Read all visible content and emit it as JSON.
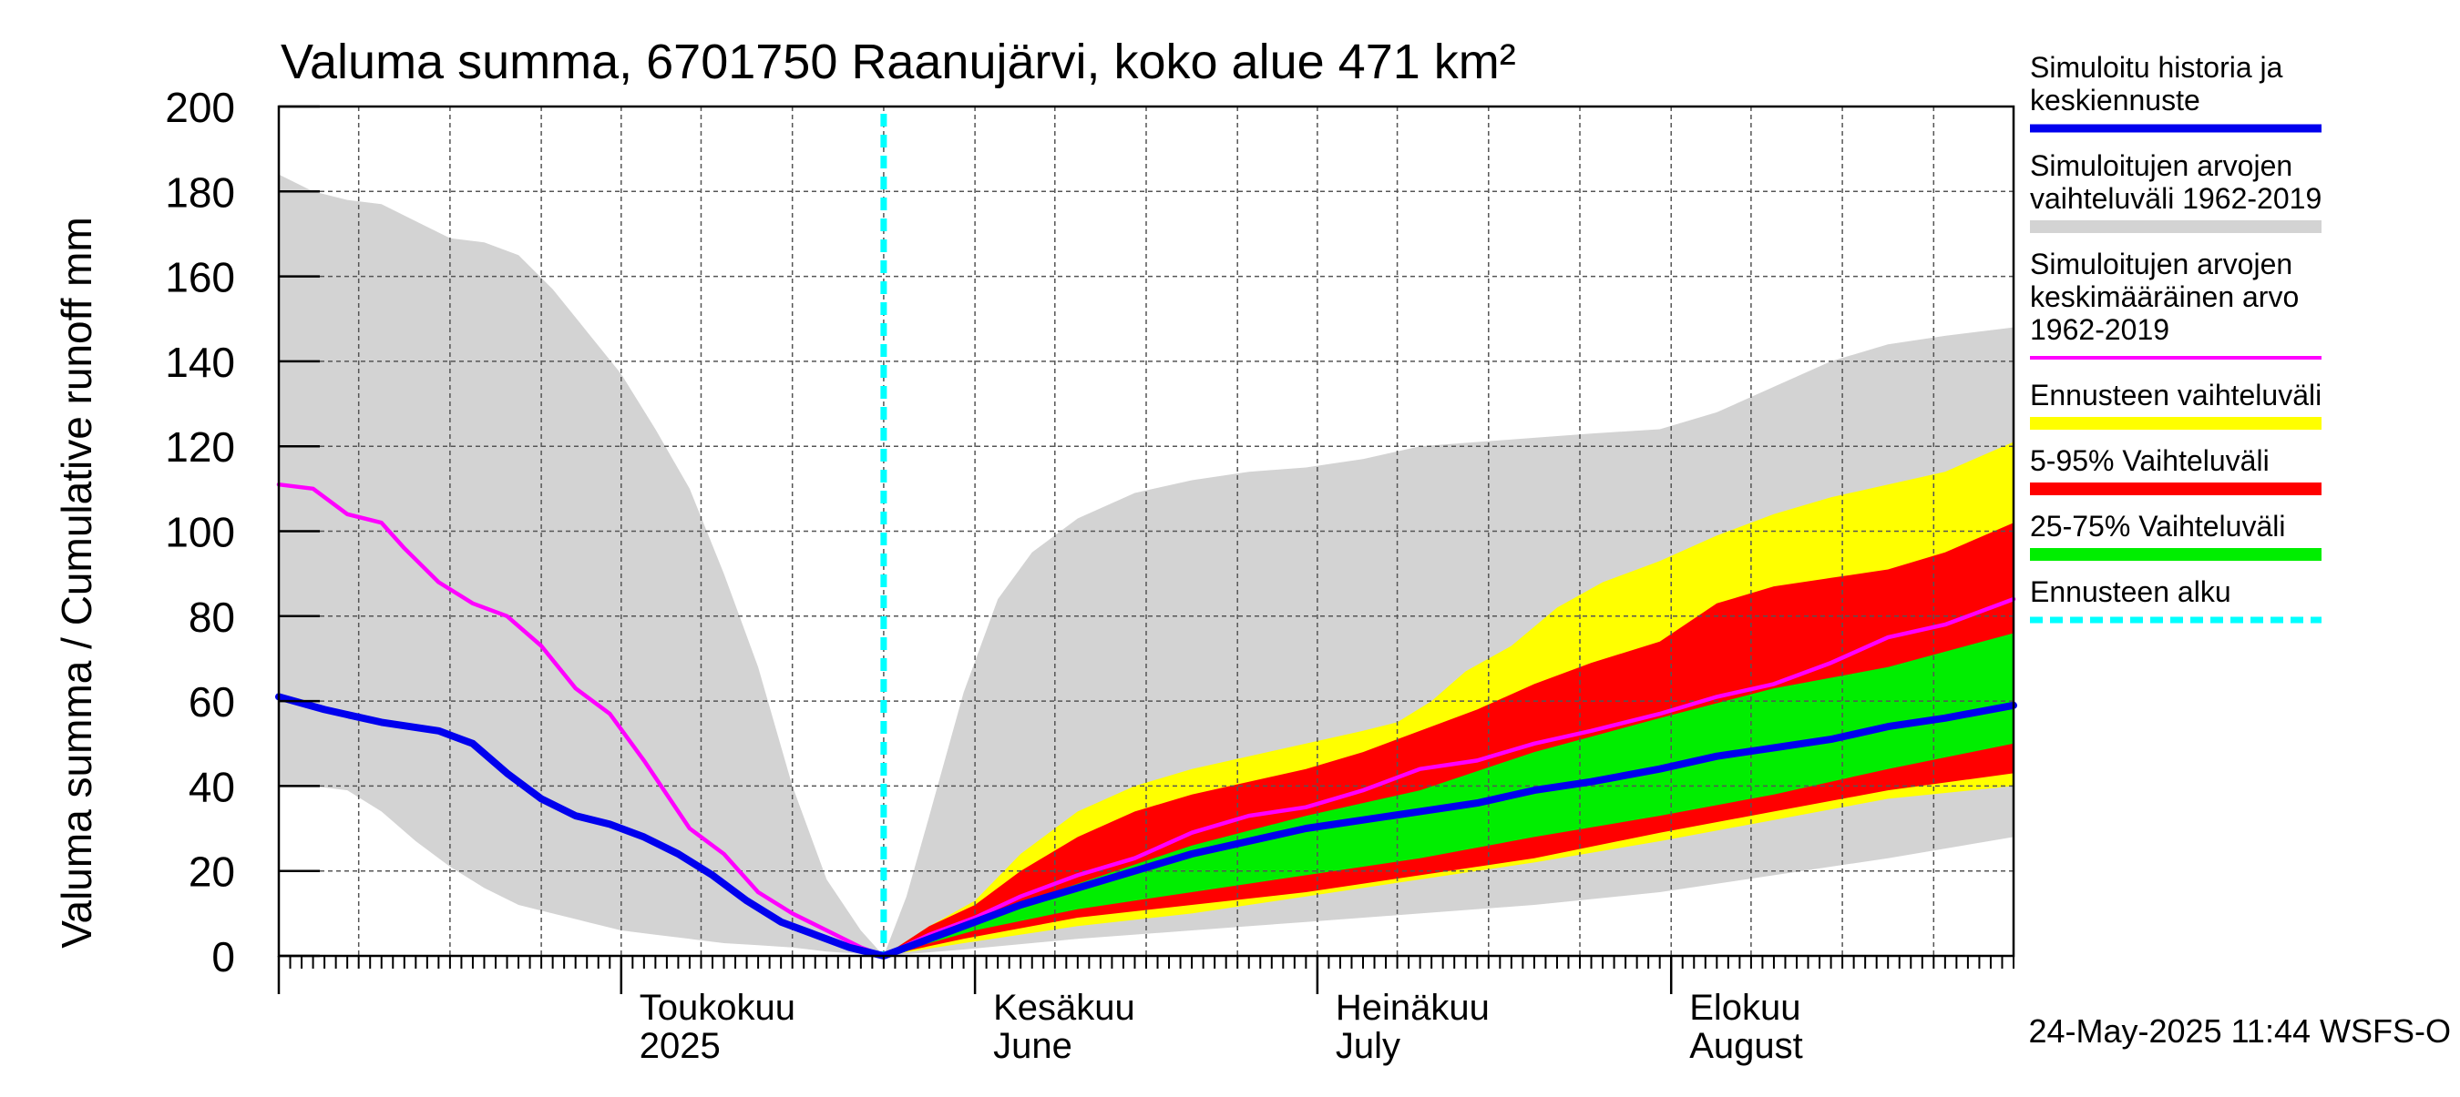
{
  "chart_data": {
    "type": "area",
    "title": "Valuma summa, 6701750 Raanujärvi, koko alue 471 km²",
    "ylabel": "Valuma summa / Cumulative runoff    mm",
    "ylim": [
      0,
      200
    ],
    "yticks": [
      0,
      20,
      40,
      60,
      80,
      100,
      120,
      140,
      160,
      180,
      200
    ],
    "xlim": [
      "2025-04-01",
      "2025-08-31"
    ],
    "grid": true,
    "legend_position": "right",
    "forecast_start": "2025-05-24",
    "timestamp": "24-May-2025 11:44 WSFS-O",
    "month_labels": [
      {
        "date": "2025-05-01",
        "line1": "Toukokuu",
        "line2": "2025"
      },
      {
        "date": "2025-06-01",
        "line1": "Kesäkuu",
        "line2": "June"
      },
      {
        "date": "2025-07-01",
        "line1": "Heinäkuu",
        "line2": "July"
      },
      {
        "date": "2025-08-01",
        "line1": "Elokuu",
        "line2": "August"
      }
    ],
    "legend": [
      {
        "lines": [
          "Simuloitu historia ja",
          "keskiennuste"
        ],
        "color": "#0000ee",
        "style": "solid"
      },
      {
        "lines": [
          "Simuloitujen arvojen",
          "vaihteluväli 1962-2019"
        ],
        "color": "#d3d3d3",
        "style": "solid"
      },
      {
        "lines": [
          "Simuloitujen arvojen",
          "keskimääräinen arvo",
          "   1962-2019"
        ],
        "color": "#ff00ff",
        "style": "solid"
      },
      {
        "lines": [
          "Ennusteen vaihteluväli"
        ],
        "color": "#ffff00",
        "style": "solid"
      },
      {
        "lines": [
          "5-95% Vaihteluväli"
        ],
        "color": "#ff0000",
        "style": "solid"
      },
      {
        "lines": [
          "25-75% Vaihteluväli"
        ],
        "color": "#00ee00",
        "style": "solid"
      },
      {
        "lines": [
          "Ennusteen alku"
        ],
        "color": "#00ffff",
        "style": "dashed"
      }
    ],
    "bands": [
      {
        "name": "Simuloitujen arvojen vaihteluväli 1962-2019",
        "color": "#d3d3d3",
        "upper": [
          [
            "2025-04-01",
            184
          ],
          [
            "2025-04-04",
            180
          ],
          [
            "2025-04-07",
            178
          ],
          [
            "2025-04-10",
            177
          ],
          [
            "2025-04-13",
            173
          ],
          [
            "2025-04-16",
            169
          ],
          [
            "2025-04-19",
            168
          ],
          [
            "2025-04-22",
            165
          ],
          [
            "2025-04-25",
            157
          ],
          [
            "2025-04-28",
            147
          ],
          [
            "2025-05-01",
            137
          ],
          [
            "2025-05-04",
            124
          ],
          [
            "2025-05-07",
            110
          ],
          [
            "2025-05-10",
            90
          ],
          [
            "2025-05-13",
            68
          ],
          [
            "2025-05-16",
            40
          ],
          [
            "2025-05-19",
            18
          ],
          [
            "2025-05-22",
            6
          ],
          [
            "2025-05-24",
            0
          ],
          [
            "2025-05-26",
            14
          ],
          [
            "2025-05-28",
            33
          ],
          [
            "2025-05-31",
            62
          ],
          [
            "2025-06-03",
            84
          ],
          [
            "2025-06-06",
            95
          ],
          [
            "2025-06-10",
            103
          ],
          [
            "2025-06-15",
            109
          ],
          [
            "2025-06-20",
            112
          ],
          [
            "2025-06-25",
            114
          ],
          [
            "2025-06-30",
            115
          ],
          [
            "2025-07-05",
            117
          ],
          [
            "2025-07-10",
            120
          ],
          [
            "2025-07-15",
            121
          ],
          [
            "2025-07-20",
            122
          ],
          [
            "2025-07-25",
            123
          ],
          [
            "2025-07-31",
            124
          ],
          [
            "2025-08-05",
            128
          ],
          [
            "2025-08-10",
            134
          ],
          [
            "2025-08-15",
            140
          ],
          [
            "2025-08-20",
            144
          ],
          [
            "2025-08-25",
            146
          ],
          [
            "2025-08-31",
            148
          ]
        ],
        "lower": [
          [
            "2025-04-01",
            40
          ],
          [
            "2025-04-04",
            40
          ],
          [
            "2025-04-07",
            39
          ],
          [
            "2025-04-10",
            34
          ],
          [
            "2025-04-13",
            27
          ],
          [
            "2025-04-16",
            21
          ],
          [
            "2025-04-19",
            16
          ],
          [
            "2025-04-22",
            12
          ],
          [
            "2025-04-25",
            10
          ],
          [
            "2025-04-28",
            8
          ],
          [
            "2025-05-01",
            6
          ],
          [
            "2025-05-04",
            5
          ],
          [
            "2025-05-07",
            4
          ],
          [
            "2025-05-10",
            3
          ],
          [
            "2025-05-13",
            2.5
          ],
          [
            "2025-05-16",
            2
          ],
          [
            "2025-05-19",
            1
          ],
          [
            "2025-05-22",
            0.5
          ],
          [
            "2025-05-24",
            0
          ],
          [
            "2025-05-31",
            1.5
          ],
          [
            "2025-06-10",
            4
          ],
          [
            "2025-06-20",
            6
          ],
          [
            "2025-06-30",
            8
          ],
          [
            "2025-07-10",
            10
          ],
          [
            "2025-07-20",
            12
          ],
          [
            "2025-07-31",
            15
          ],
          [
            "2025-08-10",
            19
          ],
          [
            "2025-08-20",
            23
          ],
          [
            "2025-08-31",
            28
          ]
        ]
      },
      {
        "name": "Ennusteen vaihteluväli",
        "color": "#ffff00",
        "upper": [
          [
            "2025-05-24",
            0
          ],
          [
            "2025-05-28",
            7
          ],
          [
            "2025-06-01",
            13
          ],
          [
            "2025-06-05",
            24
          ],
          [
            "2025-06-10",
            34
          ],
          [
            "2025-06-15",
            40
          ],
          [
            "2025-06-20",
            44
          ],
          [
            "2025-06-25",
            47
          ],
          [
            "2025-06-30",
            50
          ],
          [
            "2025-07-05",
            53
          ],
          [
            "2025-07-08",
            55
          ],
          [
            "2025-07-11",
            60
          ],
          [
            "2025-07-14",
            67
          ],
          [
            "2025-07-18",
            73
          ],
          [
            "2025-07-22",
            82
          ],
          [
            "2025-07-26",
            88
          ],
          [
            "2025-07-31",
            93
          ],
          [
            "2025-08-05",
            99
          ],
          [
            "2025-08-10",
            104
          ],
          [
            "2025-08-15",
            108
          ],
          [
            "2025-08-20",
            111
          ],
          [
            "2025-08-25",
            114
          ],
          [
            "2025-08-31",
            121
          ]
        ],
        "lower": [
          [
            "2025-05-24",
            0
          ],
          [
            "2025-05-31",
            3
          ],
          [
            "2025-06-10",
            7
          ],
          [
            "2025-06-20",
            10
          ],
          [
            "2025-06-30",
            14
          ],
          [
            "2025-07-10",
            18
          ],
          [
            "2025-07-20",
            22
          ],
          [
            "2025-07-31",
            27
          ],
          [
            "2025-08-10",
            32
          ],
          [
            "2025-08-20",
            37
          ],
          [
            "2025-08-31",
            40
          ]
        ]
      },
      {
        "name": "5-95% Vaihteluväli",
        "color": "#ff0000",
        "upper": [
          [
            "2025-05-24",
            0
          ],
          [
            "2025-05-28",
            7
          ],
          [
            "2025-06-01",
            12
          ],
          [
            "2025-06-05",
            20
          ],
          [
            "2025-06-10",
            28
          ],
          [
            "2025-06-15",
            34
          ],
          [
            "2025-06-20",
            38
          ],
          [
            "2025-06-25",
            41
          ],
          [
            "2025-06-30",
            44
          ],
          [
            "2025-07-05",
            48
          ],
          [
            "2025-07-10",
            53
          ],
          [
            "2025-07-15",
            58
          ],
          [
            "2025-07-20",
            64
          ],
          [
            "2025-07-25",
            69
          ],
          [
            "2025-07-31",
            74
          ],
          [
            "2025-08-05",
            83
          ],
          [
            "2025-08-10",
            87
          ],
          [
            "2025-08-15",
            89
          ],
          [
            "2025-08-20",
            91
          ],
          [
            "2025-08-25",
            95
          ],
          [
            "2025-08-31",
            102
          ]
        ],
        "lower": [
          [
            "2025-05-24",
            0
          ],
          [
            "2025-05-31",
            4
          ],
          [
            "2025-06-10",
            9
          ],
          [
            "2025-06-20",
            12
          ],
          [
            "2025-06-30",
            15
          ],
          [
            "2025-07-10",
            19
          ],
          [
            "2025-07-20",
            23
          ],
          [
            "2025-07-31",
            29
          ],
          [
            "2025-08-10",
            34
          ],
          [
            "2025-08-20",
            39
          ],
          [
            "2025-08-31",
            43
          ]
        ]
      },
      {
        "name": "25-75% Vaihteluväli",
        "color": "#00ee00",
        "upper": [
          [
            "2025-05-24",
            0
          ],
          [
            "2025-06-01",
            9
          ],
          [
            "2025-06-10",
            17
          ],
          [
            "2025-06-20",
            26
          ],
          [
            "2025-06-30",
            33
          ],
          [
            "2025-07-10",
            39
          ],
          [
            "2025-07-20",
            48
          ],
          [
            "2025-07-31",
            56
          ],
          [
            "2025-08-10",
            63
          ],
          [
            "2025-08-20",
            68
          ],
          [
            "2025-08-31",
            76
          ]
        ],
        "lower": [
          [
            "2025-05-24",
            0
          ],
          [
            "2025-06-01",
            6
          ],
          [
            "2025-06-10",
            11
          ],
          [
            "2025-06-20",
            15
          ],
          [
            "2025-06-30",
            19
          ],
          [
            "2025-07-10",
            23
          ],
          [
            "2025-07-20",
            28
          ],
          [
            "2025-07-31",
            33
          ],
          [
            "2025-08-10",
            38
          ],
          [
            "2025-08-20",
            44
          ],
          [
            "2025-08-31",
            50
          ]
        ]
      }
    ],
    "series": [
      {
        "name": "Simuloitujen arvojen keskimääräinen arvo 1962-2019",
        "color": "#ff00ff",
        "points": [
          [
            "2025-04-01",
            111
          ],
          [
            "2025-04-04",
            110
          ],
          [
            "2025-04-07",
            104
          ],
          [
            "2025-04-10",
            102
          ],
          [
            "2025-04-12",
            96
          ],
          [
            "2025-04-15",
            88
          ],
          [
            "2025-04-18",
            83
          ],
          [
            "2025-04-21",
            80
          ],
          [
            "2025-04-24",
            73
          ],
          [
            "2025-04-27",
            63
          ],
          [
            "2025-04-30",
            57
          ],
          [
            "2025-05-03",
            46
          ],
          [
            "2025-05-07",
            30
          ],
          [
            "2025-05-10",
            24
          ],
          [
            "2025-05-13",
            15
          ],
          [
            "2025-05-16",
            10
          ],
          [
            "2025-05-19",
            6
          ],
          [
            "2025-05-22",
            2
          ],
          [
            "2025-05-24",
            0
          ],
          [
            "2025-05-28",
            5
          ],
          [
            "2025-06-01",
            9
          ],
          [
            "2025-06-05",
            14
          ],
          [
            "2025-06-10",
            19
          ],
          [
            "2025-06-15",
            23
          ],
          [
            "2025-06-20",
            29
          ],
          [
            "2025-06-25",
            33
          ],
          [
            "2025-06-30",
            35
          ],
          [
            "2025-07-05",
            39
          ],
          [
            "2025-07-10",
            44
          ],
          [
            "2025-07-15",
            46
          ],
          [
            "2025-07-20",
            50
          ],
          [
            "2025-07-25",
            53
          ],
          [
            "2025-07-31",
            57
          ],
          [
            "2025-08-05",
            61
          ],
          [
            "2025-08-10",
            64
          ],
          [
            "2025-08-15",
            69
          ],
          [
            "2025-08-20",
            75
          ],
          [
            "2025-08-25",
            78
          ],
          [
            "2025-08-31",
            84
          ]
        ]
      },
      {
        "name": "Simuloitu historia ja keskiennuste",
        "color": "#0000ee",
        "points": [
          [
            "2025-04-01",
            61
          ],
          [
            "2025-04-05",
            58
          ],
          [
            "2025-04-10",
            55
          ],
          [
            "2025-04-15",
            53
          ],
          [
            "2025-04-18",
            50
          ],
          [
            "2025-04-21",
            43
          ],
          [
            "2025-04-24",
            37
          ],
          [
            "2025-04-27",
            33
          ],
          [
            "2025-04-30",
            31
          ],
          [
            "2025-05-03",
            28
          ],
          [
            "2025-05-06",
            24
          ],
          [
            "2025-05-09",
            19
          ],
          [
            "2025-05-12",
            13
          ],
          [
            "2025-05-15",
            8
          ],
          [
            "2025-05-18",
            5
          ],
          [
            "2025-05-21",
            2
          ],
          [
            "2025-05-24",
            0
          ],
          [
            "2025-05-28",
            4
          ],
          [
            "2025-06-01",
            8
          ],
          [
            "2025-06-05",
            12
          ],
          [
            "2025-06-10",
            16
          ],
          [
            "2025-06-15",
            20
          ],
          [
            "2025-06-20",
            24
          ],
          [
            "2025-06-25",
            27
          ],
          [
            "2025-06-30",
            30
          ],
          [
            "2025-07-05",
            32
          ],
          [
            "2025-07-10",
            34
          ],
          [
            "2025-07-15",
            36
          ],
          [
            "2025-07-20",
            39
          ],
          [
            "2025-07-25",
            41
          ],
          [
            "2025-07-31",
            44
          ],
          [
            "2025-08-05",
            47
          ],
          [
            "2025-08-10",
            49
          ],
          [
            "2025-08-15",
            51
          ],
          [
            "2025-08-20",
            54
          ],
          [
            "2025-08-25",
            56
          ],
          [
            "2025-08-31",
            59
          ]
        ]
      }
    ]
  }
}
